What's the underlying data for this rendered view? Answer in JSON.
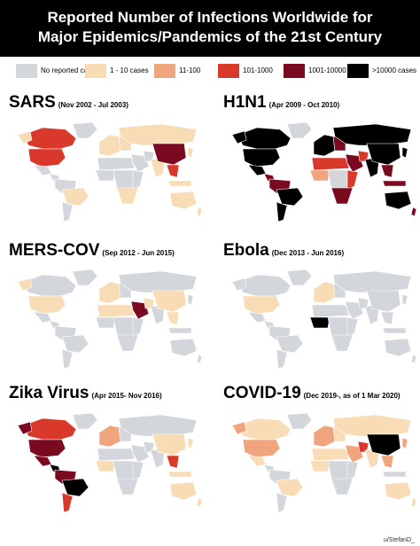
{
  "header": {
    "title_line1": "Reported Number of Infections Worldwide for",
    "title_line2": "Major Epidemics/Pandemics of the 21st Century"
  },
  "legend": [
    {
      "label": "No reported cases",
      "color": "#d3d6da"
    },
    {
      "label": "1 - 10 cases",
      "color": "#f7dcb6"
    },
    {
      "label": "11-100",
      "color": "#f1a57f"
    },
    {
      "label": "101-1000",
      "color": "#d8392b"
    },
    {
      "label": "1001-10000",
      "color": "#7a0a1f"
    },
    {
      "label": ">10000 cases",
      "color": "#000000"
    }
  ],
  "maps": [
    {
      "name": "SARS",
      "period": "(Nov 2002 - Jul 2003)",
      "regions": {
        "na": 1,
        "us": 3,
        "ca": 3,
        "mx": 0,
        "ca_am": 0,
        "sa_n": 0,
        "br": 1,
        "sa_s": 0,
        "gl": 0,
        "eu_w": 1,
        "eu_e": 1,
        "ru": 1,
        "af_n": 0,
        "af_w": 0,
        "af_c": 0,
        "af_e": 0,
        "af_s": 1,
        "me": 0,
        "ir": 0,
        "in": 1,
        "cn": 4,
        "sea": 3,
        "jp": 1,
        "id": 1,
        "au": 1,
        "nz": 1
      }
    },
    {
      "name": "H1N1",
      "period": "(Apr 2009 - Oct 2010)",
      "regions": {
        "na": 5,
        "us": 5,
        "ca": 5,
        "mx": 5,
        "ca_am": 4,
        "sa_n": 4,
        "br": 5,
        "sa_s": 5,
        "gl": 0,
        "eu_w": 5,
        "eu_e": 4,
        "ru": 5,
        "af_n": 3,
        "af_w": 2,
        "af_c": 0,
        "af_e": 3,
        "af_s": 4,
        "me": 4,
        "ir": 3,
        "in": 5,
        "cn": 5,
        "sea": 4,
        "jp": 5,
        "id": 4,
        "au": 5,
        "nz": 4
      }
    },
    {
      "name": "MERS-COV",
      "period": "(Sep 2012 - Jun 2015)",
      "regions": {
        "na": 1,
        "us": 1,
        "ca": 0,
        "mx": 0,
        "ca_am": 0,
        "sa_n": 0,
        "br": 0,
        "sa_s": 0,
        "gl": 0,
        "eu_w": 1,
        "eu_e": 0,
        "ru": 0,
        "af_n": 1,
        "af_w": 0,
        "af_c": 0,
        "af_e": 0,
        "af_s": 0,
        "me": 4,
        "ir": 1,
        "in": 0,
        "cn": 1,
        "sea": 1,
        "jp": 0,
        "id": 0,
        "au": 0,
        "nz": 0
      }
    },
    {
      "name": "Ebola",
      "period": "(Dec 2013 - Jun 2016)",
      "regions": {
        "na": 0,
        "us": 1,
        "ca": 0,
        "mx": 0,
        "ca_am": 0,
        "sa_n": 0,
        "br": 0,
        "sa_s": 0,
        "gl": 0,
        "eu_w": 1,
        "eu_e": 0,
        "ru": 0,
        "af_n": 0,
        "af_w": 5,
        "af_c": 0,
        "af_e": 0,
        "af_s": 0,
        "me": 0,
        "ir": 0,
        "in": 0,
        "cn": 0,
        "sea": 0,
        "jp": 0,
        "id": 0,
        "au": 0,
        "nz": 0
      }
    },
    {
      "name": "Zika Virus",
      "period": "(Apr 2015- Nov 2016)",
      "regions": {
        "na": 4,
        "us": 4,
        "ca": 3,
        "mx": 4,
        "ca_am": 5,
        "sa_n": 4,
        "br": 5,
        "sa_s": 3,
        "gl": 0,
        "eu_w": 2,
        "eu_e": 0,
        "ru": 0,
        "af_n": 0,
        "af_w": 1,
        "af_c": 0,
        "af_e": 0,
        "af_s": 0,
        "me": 0,
        "ir": 0,
        "in": 0,
        "cn": 1,
        "sea": 3,
        "jp": 1,
        "id": 1,
        "au": 1,
        "nz": 1
      }
    },
    {
      "name": "COVID-19",
      "period": "(Dec 2019-, as of 1 Mar 2020)",
      "regions": {
        "na": 2,
        "us": 2,
        "ca": 1,
        "mx": 1,
        "ca_am": 0,
        "sa_n": 0,
        "br": 1,
        "sa_s": 0,
        "gl": 0,
        "eu_w": 2,
        "eu_e": 1,
        "ru": 1,
        "af_n": 1,
        "af_w": 1,
        "af_c": 0,
        "af_e": 0,
        "af_s": 0,
        "me": 2,
        "ir": 3,
        "in": 1,
        "cn": 5,
        "sea": 2,
        "jp": 2,
        "id": 0,
        "au": 1,
        "nz": 1
      }
    }
  ],
  "credit": "u/StefanD_"
}
